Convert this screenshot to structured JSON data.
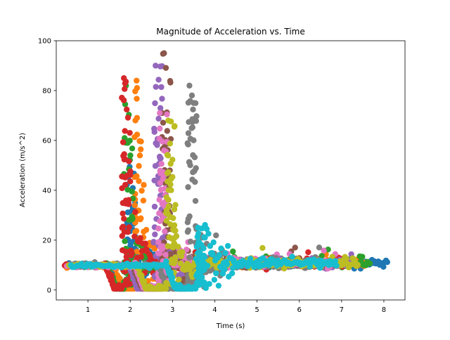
{
  "chart_data": {
    "type": "scatter",
    "title": "Magnitude of Acceleration vs. Time",
    "xlabel": "Time (s)",
    "ylabel": "Acceleration (m/s^2)",
    "xlim": [
      0.25,
      8.5
    ],
    "ylim": [
      -4,
      100
    ],
    "xticks": [
      1,
      2,
      3,
      4,
      5,
      6,
      7,
      8
    ],
    "yticks": [
      0,
      20,
      40,
      60,
      80,
      100
    ],
    "grid": false,
    "legend": "none",
    "baseline": 9.8,
    "series": [
      {
        "color": "#1f77b4",
        "start": 0.55,
        "end": 8.1,
        "dip": 1.75,
        "spikeT": 1.9,
        "peak": 52
      },
      {
        "color": "#ff7f0e",
        "start": 0.5,
        "end": 7.6,
        "dip": 1.85,
        "spikeT": 2.1,
        "peak": 84
      },
      {
        "color": "#2ca02c",
        "start": 0.6,
        "end": 7.7,
        "dip": 1.7,
        "spikeT": 1.85,
        "peak": 82
      },
      {
        "color": "#d62728",
        "start": 0.45,
        "end": 7.2,
        "dip": 1.65,
        "spikeT": 1.8,
        "peak": 85
      },
      {
        "color": "#9467bd",
        "start": 0.6,
        "end": 7.3,
        "dip": 2.2,
        "spikeT": 2.55,
        "peak": 90
      },
      {
        "color": "#8c564b",
        "start": 0.55,
        "end": 6.8,
        "dip": 2.3,
        "spikeT": 2.75,
        "peak": 95
      },
      {
        "color": "#e377c2",
        "start": 0.5,
        "end": 7.0,
        "dip": 2.35,
        "spikeT": 2.65,
        "peak": 71
      },
      {
        "color": "#7f7f7f",
        "start": 0.6,
        "end": 6.5,
        "dip": 2.9,
        "spikeT": 3.35,
        "peak": 82
      },
      {
        "color": "#bcbd22",
        "start": 0.55,
        "end": 7.4,
        "dip": 2.4,
        "spikeT": 2.85,
        "peak": 68
      },
      {
        "color": "#17becf",
        "start": 0.6,
        "end": 6.9,
        "dip": 3.1,
        "spikeT": 3.55,
        "peak": 25
      }
    ]
  }
}
